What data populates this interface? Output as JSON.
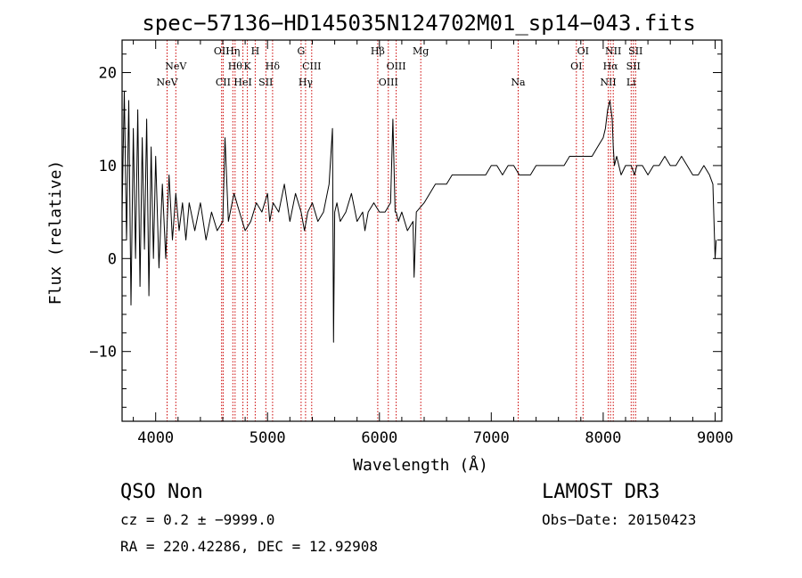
{
  "chart_data": {
    "type": "line",
    "title": "spec−57136−HD145035N124702M01_sp14−043.fits",
    "xlabel": "Wavelength (Å)",
    "ylabel": "Flux (relative)",
    "xlim": [
      3700,
      9060
    ],
    "ylim": [
      -17.5,
      23.5
    ],
    "xticks": [
      4000,
      5000,
      6000,
      7000,
      8000,
      9000
    ],
    "xtick_labels": [
      "4000",
      "5000",
      "6000",
      "7000",
      "8000",
      "9000"
    ],
    "xminor_step": 200,
    "yticks": [
      -10,
      0,
      10,
      20
    ],
    "ytick_labels": [
      "−10",
      "0",
      "10",
      "20"
    ],
    "yminor_step": 2,
    "spectrum": {
      "name": "flux",
      "x": [
        3700,
        3720,
        3740,
        3760,
        3780,
        3800,
        3820,
        3840,
        3860,
        3880,
        3900,
        3920,
        3940,
        3960,
        3980,
        4000,
        4030,
        4060,
        4090,
        4120,
        4150,
        4180,
        4210,
        4240,
        4270,
        4300,
        4350,
        4400,
        4450,
        4500,
        4550,
        4600,
        4620,
        4650,
        4700,
        4750,
        4800,
        4850,
        4900,
        4950,
        5000,
        5020,
        5050,
        5100,
        5150,
        5200,
        5250,
        5300,
        5330,
        5360,
        5400,
        5450,
        5500,
        5550,
        5580,
        5590,
        5600,
        5620,
        5650,
        5700,
        5750,
        5800,
        5850,
        5870,
        5900,
        5950,
        6000,
        6050,
        6100,
        6120,
        6140,
        6150,
        6170,
        6200,
        6250,
        6300,
        6310,
        6330,
        6400,
        6450,
        6500,
        6550,
        6600,
        6650,
        6700,
        6750,
        6800,
        6850,
        6900,
        6950,
        7000,
        7050,
        7100,
        7150,
        7200,
        7250,
        7300,
        7350,
        7400,
        7450,
        7500,
        7550,
        7600,
        7650,
        7700,
        7750,
        7800,
        7850,
        7900,
        7950,
        8000,
        8020,
        8040,
        8060,
        8080,
        8090,
        8100,
        8120,
        8140,
        8160,
        8200,
        8250,
        8280,
        8300,
        8350,
        8400,
        8450,
        8500,
        8550,
        8600,
        8650,
        8700,
        8750,
        8800,
        8850,
        8900,
        8950,
        8980,
        9000,
        9010
      ],
      "y": [
        5,
        18,
        2,
        17,
        -5,
        14,
        0,
        16,
        -3,
        13,
        1,
        15,
        -4,
        12,
        0,
        11,
        -1,
        8,
        0,
        9,
        2,
        7,
        3,
        6,
        2,
        6,
        3,
        6,
        2,
        5,
        3,
        4,
        13,
        4,
        7,
        5,
        3,
        4,
        6,
        5,
        7,
        4,
        6,
        5,
        8,
        4,
        7,
        5,
        3,
        5,
        6,
        4,
        5,
        8,
        14,
        -9,
        5,
        6,
        4,
        5,
        7,
        4,
        5,
        3,
        5,
        6,
        5,
        5,
        6,
        15,
        5,
        5,
        4,
        5,
        3,
        4,
        -2,
        5,
        6,
        7,
        8,
        8,
        8,
        9,
        9,
        9,
        9,
        9,
        9,
        9,
        10,
        10,
        9,
        10,
        10,
        9,
        9,
        9,
        10,
        10,
        10,
        10,
        10,
        10,
        11,
        11,
        11,
        11,
        11,
        12,
        13,
        14,
        16,
        17,
        15,
        12,
        10,
        11,
        10,
        9,
        10,
        10,
        9,
        10,
        10,
        9,
        10,
        10,
        11,
        10,
        10,
        11,
        10,
        9,
        9,
        10,
        9,
        8,
        0,
        2
      ]
    },
    "lines": [
      {
        "x": 4102,
        "label": "NeV",
        "row": 2
      },
      {
        "x": 4180,
        "label": "NeV",
        "row": 1
      },
      {
        "x": 4590,
        "label": "OII",
        "row": 0
      },
      {
        "x": 4603,
        "label": "CII",
        "row": 2
      },
      {
        "x": 4690,
        "label": "Hη",
        "row": 0
      },
      {
        "x": 4710,
        "label": "Hθ",
        "row": 1
      },
      {
        "x": 4780,
        "label": "HeI",
        "row": 2
      },
      {
        "x": 4820,
        "label": "K",
        "row": 1
      },
      {
        "x": 4890,
        "label": "H",
        "row": 0
      },
      {
        "x": 4985,
        "label": "SII",
        "row": 2
      },
      {
        "x": 5045,
        "label": "Hδ",
        "row": 1
      },
      {
        "x": 5300,
        "label": "G",
        "row": 0
      },
      {
        "x": 5340,
        "label": "Hγ",
        "row": 2
      },
      {
        "x": 5395,
        "label": "CIII",
        "row": 1
      },
      {
        "x": 5985,
        "label": "Hβ",
        "row": 0
      },
      {
        "x": 6080,
        "label": "OIII",
        "row": 2
      },
      {
        "x": 6150,
        "label": "OIII",
        "row": 1
      },
      {
        "x": 6370,
        "label": "Mg",
        "row": 0
      },
      {
        "x": 7240,
        "label": "Na",
        "row": 2
      },
      {
        "x": 7760,
        "label": "OI",
        "row": 1
      },
      {
        "x": 7820,
        "label": "OI",
        "row": 0
      },
      {
        "x": 8045,
        "label": "NII",
        "row": 2
      },
      {
        "x": 8065,
        "label": "Hα",
        "row": 1
      },
      {
        "x": 8090,
        "label": "NII",
        "row": 0
      },
      {
        "x": 8250,
        "label": "Li",
        "row": 2
      },
      {
        "x": 8270,
        "label": "SII",
        "row": 1
      },
      {
        "x": 8290,
        "label": "SII",
        "row": 0
      }
    ]
  },
  "footer": {
    "class_label": "QSO    Non",
    "survey_label": "LAMOST DR3",
    "cz_text": "cz = 0.2 ± −9999.0",
    "obs_date": "Obs−Date: 20150423",
    "radec_text": "RA = 220.42286, DEC =  12.92908"
  },
  "colors": {
    "spectrum": "#000000",
    "line_marker": "#cc0000",
    "axis": "#000000"
  }
}
